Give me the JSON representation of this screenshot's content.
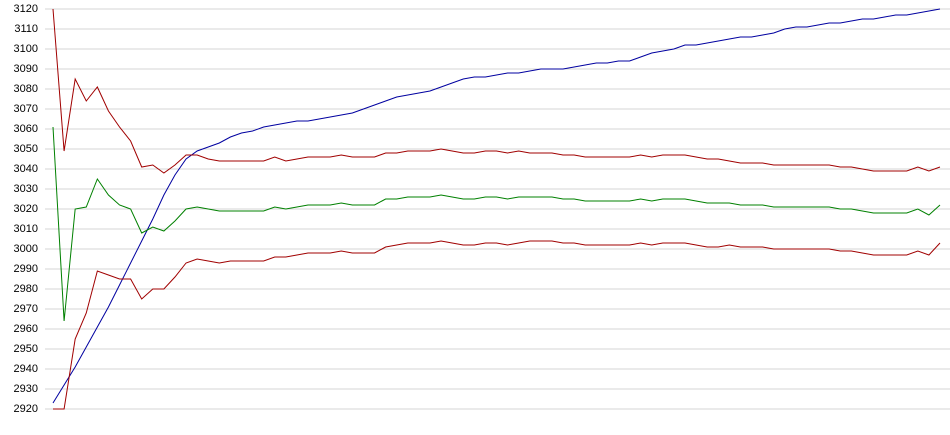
{
  "chart_data": {
    "type": "line",
    "ylim": [
      2920,
      3120
    ],
    "yticks": [
      2920,
      2930,
      2940,
      2950,
      2960,
      2970,
      2980,
      2990,
      3000,
      3010,
      3020,
      3030,
      3040,
      3050,
      3060,
      3070,
      3080,
      3090,
      3100,
      3110,
      3120
    ],
    "grid": true,
    "series": [
      {
        "color": "#0000a0",
        "values": [
          2923,
          2932,
          2941,
          2951,
          2961,
          2971,
          2982,
          2993,
          3004,
          3015,
          3027,
          3037,
          3045,
          3049,
          3051,
          3053,
          3056,
          3058,
          3059,
          3061,
          3062,
          3063,
          3064,
          3064,
          3065,
          3066,
          3067,
          3068,
          3070,
          3072,
          3074,
          3076,
          3077,
          3078,
          3079,
          3081,
          3083,
          3085,
          3086,
          3086,
          3087,
          3088,
          3088,
          3089,
          3090,
          3090,
          3090,
          3091,
          3092,
          3093,
          3093,
          3094,
          3094,
          3096,
          3098,
          3099,
          3100,
          3102,
          3102,
          3103,
          3104,
          3105,
          3106,
          3106,
          3107,
          3108,
          3110,
          3111,
          3111,
          3112,
          3113,
          3113,
          3114,
          3115,
          3115,
          3116,
          3117,
          3117,
          3118,
          3119,
          3120
        ]
      },
      {
        "color": "#a00000",
        "values": [
          3120,
          3049,
          3085,
          3074,
          3081,
          3069,
          3061,
          3054,
          3041,
          3042,
          3038,
          3042,
          3047,
          3047,
          3045,
          3044,
          3044,
          3044,
          3044,
          3044,
          3046,
          3044,
          3045,
          3046,
          3046,
          3046,
          3047,
          3046,
          3046,
          3046,
          3048,
          3048,
          3049,
          3049,
          3049,
          3050,
          3049,
          3048,
          3048,
          3049,
          3049,
          3048,
          3049,
          3048,
          3048,
          3048,
          3047,
          3047,
          3046,
          3046,
          3046,
          3046,
          3046,
          3047,
          3046,
          3047,
          3047,
          3047,
          3046,
          3045,
          3045,
          3044,
          3043,
          3043,
          3043,
          3042,
          3042,
          3042,
          3042,
          3042,
          3042,
          3041,
          3041,
          3040,
          3039,
          3039,
          3039,
          3039,
          3041,
          3039,
          3041
        ]
      },
      {
        "color": "#008000",
        "values": [
          3061,
          2964,
          3020,
          3021,
          3035,
          3027,
          3022,
          3020,
          3008,
          3011,
          3009,
          3014,
          3020,
          3021,
          3020,
          3019,
          3019,
          3019,
          3019,
          3019,
          3021,
          3020,
          3021,
          3022,
          3022,
          3022,
          3023,
          3022,
          3022,
          3022,
          3025,
          3025,
          3026,
          3026,
          3026,
          3027,
          3026,
          3025,
          3025,
          3026,
          3026,
          3025,
          3026,
          3026,
          3026,
          3026,
          3025,
          3025,
          3024,
          3024,
          3024,
          3024,
          3024,
          3025,
          3024,
          3025,
          3025,
          3025,
          3024,
          3023,
          3023,
          3023,
          3022,
          3022,
          3022,
          3021,
          3021,
          3021,
          3021,
          3021,
          3021,
          3020,
          3020,
          3019,
          3018,
          3018,
          3018,
          3018,
          3020,
          3017,
          3022
        ]
      },
      {
        "color": "#a00000",
        "values": [
          2920,
          2920,
          2955,
          2968,
          2989,
          2987,
          2985,
          2985,
          2975,
          2980,
          2980,
          2986,
          2993,
          2995,
          2994,
          2993,
          2994,
          2994,
          2994,
          2994,
          2996,
          2996,
          2997,
          2998,
          2998,
          2998,
          2999,
          2998,
          2998,
          2998,
          3001,
          3002,
          3003,
          3003,
          3003,
          3004,
          3003,
          3002,
          3002,
          3003,
          3003,
          3002,
          3003,
          3004,
          3004,
          3004,
          3003,
          3003,
          3002,
          3002,
          3002,
          3002,
          3002,
          3003,
          3002,
          3003,
          3003,
          3003,
          3002,
          3001,
          3001,
          3002,
          3001,
          3001,
          3001,
          3000,
          3000,
          3000,
          3000,
          3000,
          3000,
          2999,
          2999,
          2998,
          2997,
          2997,
          2997,
          2997,
          2999,
          2997,
          3003
        ]
      }
    ]
  }
}
